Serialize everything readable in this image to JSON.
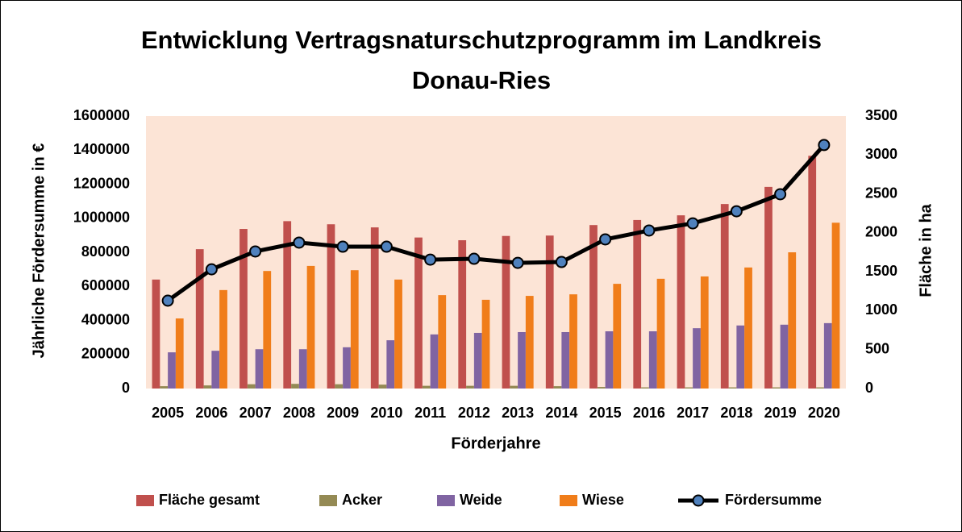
{
  "chart_data": {
    "type": "bar-line",
    "title": "Entwicklung Vertragsnaturschutzprogramm im Landkreis Donau-Ries",
    "x_label": "Förderjahre",
    "y_label": "Jährliche Fördersumme in €",
    "y2_label": "Fläche in ha",
    "categories": [
      "2005",
      "2006",
      "2007",
      "2008",
      "2009",
      "2010",
      "2011",
      "2012",
      "2013",
      "2014",
      "2015",
      "2016",
      "2017",
      "2018",
      "2019",
      "2020"
    ],
    "series": [
      {
        "name": "Fläche gesamt",
        "type": "bar",
        "axis": "y2",
        "color": "#c0504d",
        "values": [
          1400,
          1790,
          2050,
          2150,
          2110,
          2070,
          1940,
          1905,
          1960,
          1965,
          2100,
          2165,
          2225,
          2370,
          2590,
          2990
        ]
      },
      {
        "name": "Acker",
        "type": "bar",
        "axis": "y2",
        "color": "#948a54",
        "values": [
          30,
          40,
          55,
          60,
          55,
          50,
          35,
          35,
          35,
          30,
          20,
          15,
          15,
          15,
          15,
          15
        ]
      },
      {
        "name": "Weide",
        "type": "bar",
        "axis": "y2",
        "color": "#8064a2",
        "values": [
          465,
          485,
          505,
          505,
          530,
          620,
          695,
          715,
          725,
          725,
          735,
          735,
          775,
          810,
          820,
          840
        ]
      },
      {
        "name": "Wiese",
        "type": "bar",
        "axis": "y2",
        "color": "#f07d1a",
        "values": [
          900,
          1265,
          1510,
          1575,
          1520,
          1400,
          1200,
          1140,
          1190,
          1210,
          1345,
          1410,
          1440,
          1555,
          1750,
          2130
        ]
      },
      {
        "name": "Fördersumme",
        "type": "line",
        "axis": "y",
        "color": "#000000",
        "marker_color": "#4f81bd",
        "values": [
          516000,
          700000,
          805000,
          857000,
          833000,
          833000,
          757000,
          762000,
          738000,
          743000,
          876000,
          928000,
          970000,
          1041000,
          1141000,
          1430000
        ]
      }
    ],
    "ylim": [
      0,
      1600000
    ],
    "yticks": [
      0,
      200000,
      400000,
      600000,
      800000,
      1000000,
      1200000,
      1400000,
      1600000
    ],
    "y2lim": [
      0,
      3500
    ],
    "y2ticks": [
      0,
      500,
      1000,
      1500,
      2000,
      2500,
      3000,
      3500
    ],
    "plot_background": "#fce4d6",
    "legend": "bottom"
  }
}
